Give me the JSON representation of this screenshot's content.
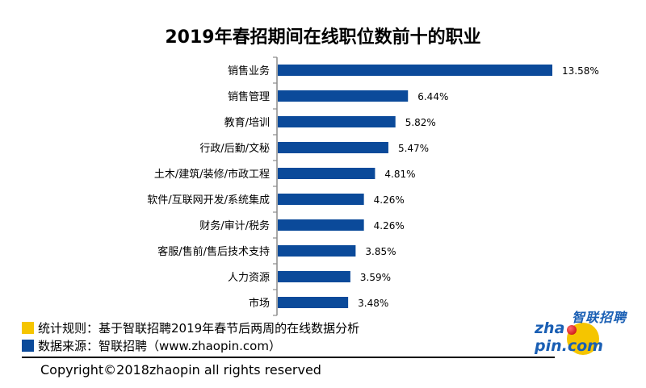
{
  "chart_data": {
    "type": "bar",
    "orientation": "horizontal",
    "title": "2019年春招期间在线职位数前十的职业",
    "xlabel": "",
    "ylabel": "",
    "xlim": [
      0,
      14
    ],
    "grid": false,
    "categories": [
      "销售业务",
      "销售管理",
      "教育/培训",
      "行政/后勤/文秘",
      "土木/建筑/装修/市政工程",
      "软件/互联网开发/系统集成",
      "财务/审计/税务",
      "客服/售前/售后技术支持",
      "人力资源",
      "市场"
    ],
    "values": [
      13.58,
      6.44,
      5.82,
      5.47,
      4.81,
      4.26,
      4.26,
      3.85,
      3.59,
      3.48
    ],
    "data_labels": [
      "13.58%",
      "6.44%",
      "5.82%",
      "5.47%",
      "4.81%",
      "4.26%",
      "4.26%",
      "3.85%",
      "3.59%",
      "3.48%"
    ],
    "unit": "%",
    "bar_color": "#0b4a9a"
  },
  "notes": [
    {
      "text": "统计规则：基于智联招聘2019年春节后两周的在线数据分析",
      "swatch_color": "#f5c500"
    },
    {
      "text": "数据来源：智联招聘（www.zhaopin.com）",
      "swatch_color": "#0b4a9a"
    }
  ],
  "copyright": "Copyright©2018zhaopin all rights reserved",
  "logo": {
    "cn": "智联招聘",
    "en_left": "zha",
    "en_right": "pin.com"
  }
}
